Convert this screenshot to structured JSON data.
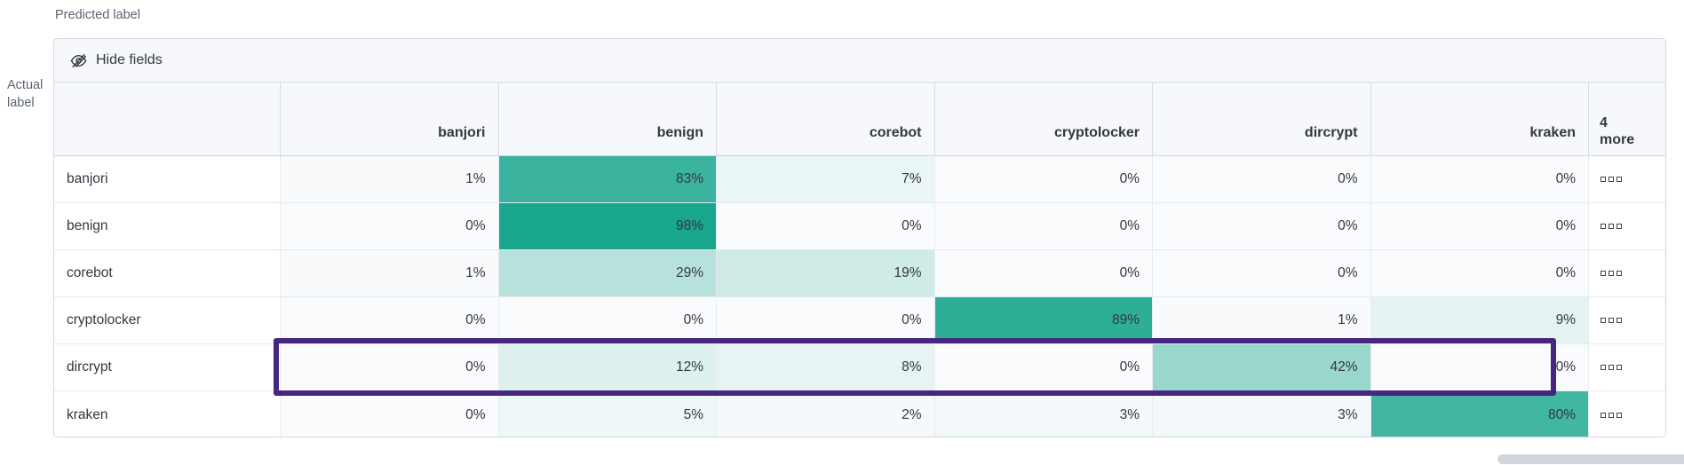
{
  "axis": {
    "predicted": "Predicted label",
    "actual_line1": "Actual",
    "actual_line2": "label"
  },
  "toolbar": {
    "hide_fields_label": "Hide fields",
    "hide_fields_icon": "eye-closed-icon"
  },
  "matrix": {
    "columns": [
      "banjori",
      "benign",
      "corebot",
      "cryptolocker",
      "dircrypt",
      "kraken"
    ],
    "more_line1": "4",
    "more_line2": "more",
    "value_suffix": "%",
    "row_actions_icon": "boxes-horizontal-icon",
    "rows": [
      {
        "label": "banjori",
        "values": [
          1,
          83,
          7,
          0,
          0,
          0
        ],
        "highlighted": false
      },
      {
        "label": "benign",
        "values": [
          0,
          98,
          0,
          0,
          0,
          0
        ],
        "highlighted": false
      },
      {
        "label": "corebot",
        "values": [
          1,
          29,
          19,
          0,
          0,
          0
        ],
        "highlighted": false
      },
      {
        "label": "cryptolocker",
        "values": [
          0,
          0,
          0,
          89,
          1,
          9
        ],
        "highlighted": false
      },
      {
        "label": "dircrypt",
        "values": [
          0,
          12,
          8,
          0,
          42,
          0
        ],
        "highlighted": true
      },
      {
        "label": "kraken",
        "values": [
          0,
          5,
          2,
          3,
          3,
          80
        ],
        "highlighted": false
      }
    ]
  },
  "colors": {
    "heat_min": "#fafbfd",
    "heat_max": "#13a58a",
    "highlight": "#46267e",
    "header_bg": "#f6f8fb",
    "border": "#cfd6e2",
    "text": "#343741",
    "axis_text": "#5a6472"
  },
  "chart_data": {
    "type": "heatmap",
    "title": "",
    "xlabel": "Predicted label",
    "ylabel": "Actual label",
    "x_categories": [
      "banjori",
      "benign",
      "corebot",
      "cryptolocker",
      "dircrypt",
      "kraken"
    ],
    "y_categories": [
      "banjori",
      "benign",
      "corebot",
      "cryptolocker",
      "dircrypt",
      "kraken"
    ],
    "values_percent": [
      [
        1,
        83,
        7,
        0,
        0,
        0
      ],
      [
        0,
        98,
        0,
        0,
        0,
        0
      ],
      [
        1,
        29,
        19,
        0,
        0,
        0
      ],
      [
        0,
        0,
        0,
        89,
        1,
        9
      ],
      [
        0,
        12,
        8,
        0,
        42,
        0
      ],
      [
        0,
        5,
        2,
        3,
        3,
        80
      ]
    ],
    "value_format": "percent",
    "hidden_columns_label": "4 more",
    "highlighted_row": "dircrypt",
    "legend": "none",
    "color_scale": {
      "min_color": "#fafbfd",
      "max_color": "#13a58a",
      "domain": [
        0,
        100
      ]
    }
  }
}
